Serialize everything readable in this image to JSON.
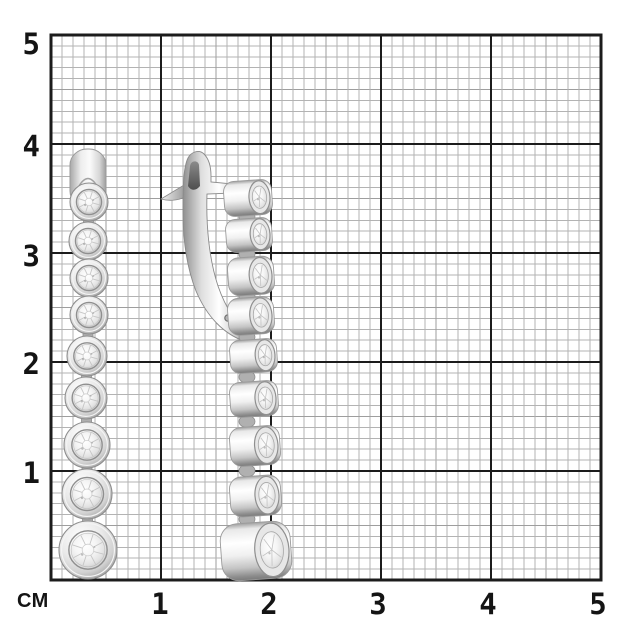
{
  "ruler": {
    "unit_label": "СМ",
    "x_labels": [
      "1",
      "2",
      "3",
      "4",
      "5"
    ],
    "y_labels": [
      "5",
      "4",
      "3",
      "2",
      "1"
    ],
    "cm_per_side": 5,
    "mm_per_cm": 10,
    "grid_major_color": "#1c1c1c",
    "grid_minor_color": "#b3b3b3",
    "label_color": "#141414",
    "background_color": "#ffffff"
  },
  "subject": {
    "front_view": "earring-front-view",
    "side_view": "earring-side-view",
    "stone_count_per_earring": 9,
    "metal_color": "#d9d9d9",
    "stone_color": "#f6f6f6"
  }
}
